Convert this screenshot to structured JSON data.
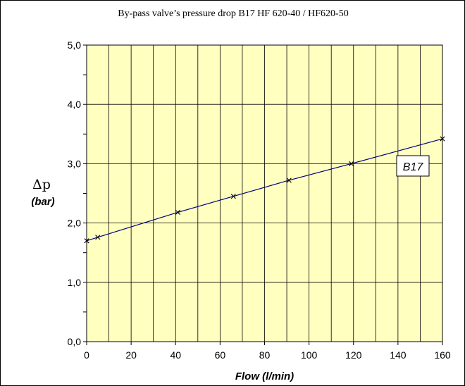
{
  "chart_data": {
    "type": "line",
    "title": "By-pass valve’s pressure drop B17 HF 620-40 / HF620-50",
    "xlabel": "Flow (l/min)",
    "ylabel_symbol": "Δp",
    "ylabel_unit": "(bar)",
    "xlim": [
      0,
      160
    ],
    "ylim": [
      0,
      5
    ],
    "x_ticks": [
      0,
      20,
      40,
      60,
      80,
      100,
      120,
      140,
      160
    ],
    "x_tick_labels": [
      "0",
      "20",
      "40",
      "60",
      "80",
      "100",
      "120",
      "140",
      "160"
    ],
    "y_ticks": [
      0,
      1,
      2,
      3,
      4,
      5
    ],
    "y_tick_labels": [
      "0,0",
      "1,0",
      "2,0",
      "3,0",
      "4,0",
      "5,0"
    ],
    "x_minor_step": 10,
    "y_minor_step": 0.5,
    "grid": true,
    "plot_background": "#ffffc0",
    "series": [
      {
        "name": "B17",
        "color": "#000080",
        "marker": "x",
        "x": [
          0,
          5,
          41,
          66,
          91,
          119,
          160
        ],
        "y": [
          1.7,
          1.76,
          2.18,
          2.45,
          2.72,
          3.0,
          3.42
        ]
      }
    ]
  }
}
